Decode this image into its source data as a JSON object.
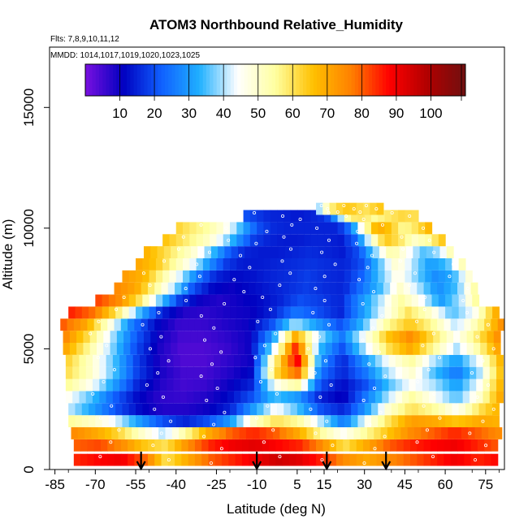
{
  "chart_data": {
    "type": "heatmap",
    "title": "ATOM3 Northbound Relative_Humidity",
    "subtitle_flights": "Flts: 7,8,9,10,11,12",
    "subtitle_dates": "MMDD: 1014,1017,1019,1020,1023,1025",
    "xlabel": "Latitude (deg N)",
    "ylabel": "Altitude (m)",
    "xlim": [
      -87,
      82
    ],
    "ylim": [
      0,
      17500
    ],
    "x_ticks": [
      -85,
      -70,
      -55,
      -40,
      -25,
      -10,
      5,
      15,
      30,
      45,
      60,
      75
    ],
    "y_ticks": [
      0,
      5000,
      10000,
      15000
    ],
    "colorbar": {
      "range": [
        0,
        110
      ],
      "ticks": [
        10,
        20,
        30,
        40,
        50,
        60,
        70,
        80,
        90,
        100
      ],
      "colors": [
        "#7a10e0",
        "#0000c0",
        "#1060ff",
        "#20b0ff",
        "#ffffff",
        "#ffffa0",
        "#ffc000",
        "#ff8000",
        "#ff0000",
        "#b00000",
        "#701010"
      ]
    },
    "profile_arrows_lat": [
      -53,
      -10,
      16,
      38
    ],
    "altitude_bands": [
      {
        "alt": 400,
        "lat": [
          -78,
          79
        ],
        "rh": [
          85,
          88,
          90,
          80,
          60,
          70,
          80,
          85,
          90,
          95,
          92,
          85,
          75,
          70,
          75,
          80,
          85,
          90,
          85,
          88
        ]
      },
      {
        "alt": 1000,
        "lat": [
          -78,
          79
        ],
        "rh": [
          80,
          82,
          75,
          65,
          60,
          75,
          85,
          90,
          92,
          88,
          85,
          75,
          60,
          70,
          80,
          85,
          88,
          90,
          85,
          80
        ]
      },
      {
        "alt": 1500,
        "lat": [
          -79,
          79
        ],
        "rh": [
          75,
          70,
          62,
          50,
          40,
          55,
          70,
          80,
          85,
          80,
          70,
          55,
          45,
          55,
          65,
          75,
          80,
          85,
          80,
          75
        ]
      },
      {
        "alt": 2000,
        "lat": [
          -80,
          80
        ],
        "rh": [
          55,
          50,
          42,
          30,
          20,
          15,
          20,
          30,
          50,
          60,
          55,
          40,
          25,
          45,
          60,
          72,
          70,
          65,
          70,
          68
        ]
      },
      {
        "alt": 2500,
        "lat": [
          -80,
          80
        ],
        "rh": [
          40,
          30,
          20,
          12,
          8,
          8,
          10,
          15,
          30,
          45,
          35,
          20,
          15,
          30,
          50,
          60,
          55,
          45,
          60,
          70
        ]
      },
      {
        "alt": 3000,
        "lat": [
          -81,
          80
        ],
        "rh": [
          45,
          35,
          22,
          12,
          7,
          6,
          8,
          12,
          20,
          35,
          30,
          15,
          10,
          25,
          40,
          55,
          45,
          35,
          50,
          72
        ]
      },
      {
        "alt": 3500,
        "lat": [
          -81,
          80
        ],
        "rh": [
          55,
          45,
          30,
          15,
          8,
          5,
          6,
          10,
          15,
          45,
          55,
          20,
          12,
          20,
          35,
          45,
          40,
          30,
          45,
          70
        ]
      },
      {
        "alt": 4000,
        "lat": [
          -81,
          80
        ],
        "rh": [
          60,
          50,
          35,
          18,
          9,
          5,
          5,
          8,
          12,
          60,
          80,
          25,
          15,
          25,
          40,
          50,
          35,
          25,
          40,
          68
        ]
      },
      {
        "alt": 4500,
        "lat": [
          -81,
          80
        ],
        "rh": [
          62,
          50,
          35,
          18,
          8,
          4,
          4,
          7,
          10,
          55,
          90,
          30,
          15,
          30,
          45,
          55,
          40,
          30,
          45,
          70
        ]
      },
      {
        "alt": 5000,
        "lat": [
          -82,
          80
        ],
        "rh": [
          70,
          55,
          38,
          20,
          9,
          4,
          4,
          6,
          10,
          40,
          85,
          35,
          20,
          40,
          60,
          70,
          55,
          40,
          55,
          75
        ]
      },
      {
        "alt": 5500,
        "lat": [
          -82,
          80
        ],
        "rh": [
          75,
          60,
          40,
          22,
          10,
          5,
          5,
          7,
          10,
          30,
          70,
          40,
          25,
          45,
          65,
          75,
          60,
          45,
          60,
          78
        ]
      },
      {
        "alt": 6000,
        "lat": [
          -83,
          80
        ],
        "rh": [
          80,
          70,
          48,
          25,
          12,
          6,
          6,
          8,
          10,
          20,
          40,
          30,
          20,
          35,
          55,
          65,
          55,
          40,
          55,
          75
        ]
      },
      {
        "alt": 6500,
        "lat": [
          -80,
          78
        ],
        "rh": [
          85,
          78,
          60,
          35,
          15,
          8,
          7,
          9,
          10,
          15,
          25,
          20,
          15,
          30,
          45,
          60,
          50,
          35,
          45,
          70
        ]
      },
      {
        "alt": 7000,
        "lat": [
          -70,
          72
        ],
        "rh": [
          82,
          75,
          60,
          38,
          18,
          10,
          8,
          10,
          12,
          15,
          20,
          18,
          15,
          28,
          40,
          55,
          45,
          30,
          40,
          60
        ]
      },
      {
        "alt": 7500,
        "lat": [
          -63,
          70
        ],
        "rh": [
          75,
          70,
          55,
          40,
          20,
          12,
          10,
          12,
          14,
          16,
          18,
          16,
          15,
          25,
          35,
          50,
          40,
          28,
          35,
          55
        ]
      },
      {
        "alt": 8000,
        "lat": [
          -60,
          68
        ],
        "rh": [
          72,
          68,
          55,
          42,
          25,
          15,
          12,
          13,
          15,
          16,
          18,
          16,
          15,
          22,
          35,
          48,
          38,
          28,
          32,
          50
        ]
      },
      {
        "alt": 8500,
        "lat": [
          -55,
          66
        ],
        "rh": [
          70,
          65,
          55,
          45,
          30,
          18,
          14,
          14,
          15,
          16,
          17,
          16,
          15,
          20,
          35,
          50,
          40,
          30,
          35,
          55
        ]
      },
      {
        "alt": 9000,
        "lat": [
          -52,
          63
        ],
        "rh": [
          68,
          62,
          55,
          48,
          35,
          22,
          15,
          14,
          14,
          15,
          16,
          15,
          14,
          20,
          38,
          55,
          45,
          35,
          40,
          60
        ]
      },
      {
        "alt": 9500,
        "lat": [
          -45,
          58
        ],
        "rh": [
          65,
          60,
          55,
          50,
          40,
          28,
          18,
          15,
          14,
          14,
          15,
          15,
          14,
          22,
          45,
          65,
          60,
          50,
          55,
          65
        ]
      },
      {
        "alt": 10000,
        "lat": [
          -40,
          53
        ],
        "rh": [
          62,
          58,
          55,
          50,
          42,
          30,
          20,
          16,
          15,
          15,
          15,
          15,
          15,
          25,
          50,
          70,
          65,
          55,
          60,
          68
        ]
      },
      {
        "alt": 10500,
        "lat": [
          -15,
          50
        ],
        "rh": [
          20,
          18,
          16,
          15,
          15,
          14,
          14,
          15,
          16,
          20,
          35,
          55,
          60,
          58,
          55,
          58,
          60,
          62,
          60,
          62
        ]
      },
      {
        "alt": 10800,
        "lat": [
          12,
          35
        ],
        "rh": [
          40,
          45,
          50,
          55,
          58,
          60,
          62,
          63,
          64,
          65,
          64,
          63,
          62,
          60,
          60,
          60,
          62,
          63,
          64,
          65
        ]
      }
    ]
  }
}
